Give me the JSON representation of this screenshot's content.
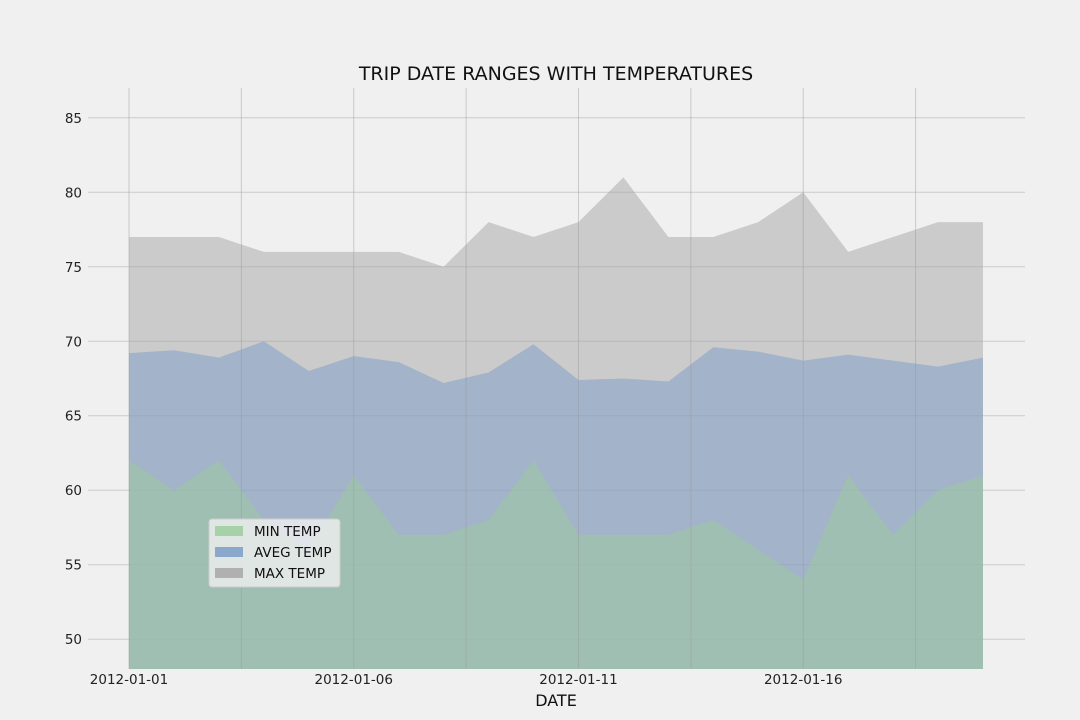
{
  "chart_data": {
    "type": "area",
    "title": "TRIP DATE RANGES WITH TEMPERATURES",
    "xlabel": "DATE",
    "ylabel": "",
    "x": [
      "2012-01-01",
      "2012-01-02",
      "2012-01-03",
      "2012-01-04",
      "2012-01-05",
      "2012-01-06",
      "2012-01-07",
      "2012-01-08",
      "2012-01-09",
      "2012-01-10",
      "2012-01-11",
      "2012-01-12",
      "2012-01-13",
      "2012-01-14",
      "2012-01-15",
      "2012-01-16",
      "2012-01-17",
      "2012-01-18",
      "2012-01-19",
      "2012-01-20"
    ],
    "x_ticks": [
      "2012-01-01",
      "2012-01-06",
      "2012-01-11",
      "2012-01-16"
    ],
    "ylim": [
      48,
      87
    ],
    "yticks": [
      50,
      55,
      60,
      65,
      70,
      75,
      80,
      85
    ],
    "grid": true,
    "legend_position": "lower-left",
    "series": [
      {
        "name": "MIN TEMP",
        "color": "#9ccc9c",
        "values": [
          62,
          60,
          62,
          58,
          56,
          61,
          57,
          57,
          58,
          62,
          57,
          57,
          57,
          58,
          56,
          54,
          61,
          57,
          60,
          61
        ]
      },
      {
        "name": "AVEG TEMP",
        "color": "#7b9cc8",
        "values": [
          69.2,
          69.4,
          68.9,
          70.0,
          68.0,
          69.0,
          68.6,
          67.2,
          67.9,
          69.8,
          67.4,
          67.5,
          67.3,
          69.6,
          69.3,
          68.7,
          69.1,
          68.7,
          68.3,
          68.9
        ]
      },
      {
        "name": "MAX TEMP",
        "color": "#a6a6a6",
        "values": [
          77,
          77,
          77,
          76,
          76,
          76,
          76,
          75,
          78,
          77,
          78,
          81,
          77,
          77,
          78,
          80,
          76,
          77,
          78,
          78
        ]
      }
    ]
  }
}
